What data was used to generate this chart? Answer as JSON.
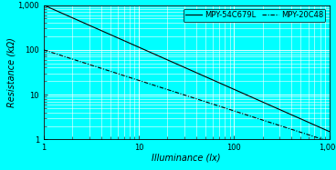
{
  "title": "",
  "xlabel": "Illuminance (lx)",
  "ylabel": "Resistance (kΩ)",
  "xlim": [
    1,
    1000
  ],
  "ylim": [
    1,
    1000
  ],
  "plot_bg_color": "#00FFFF",
  "fig_bg_color": "#00FFFF",
  "grid_major_color": "#FFFFFF",
  "grid_minor_color": "#FFFFFF",
  "line1_label": "MPY-54C679L",
  "line1_style": "-",
  "line1_color": "#000000",
  "line1_lw": 0.8,
  "line1_x0": 1,
  "line1_y0": 1000,
  "line1_x1": 1000,
  "line1_y1": 1.5,
  "line2_label": "MPY-20C48",
  "line2_color": "#000000",
  "line2_lw": 0.8,
  "line2_x0": 1,
  "line2_y0": 100,
  "line2_x1": 1000,
  "line2_y1": 0.9,
  "tick_label_fontsize": 6,
  "axis_label_fontsize": 7,
  "legend_fontsize": 6,
  "legend_ncol": 2
}
